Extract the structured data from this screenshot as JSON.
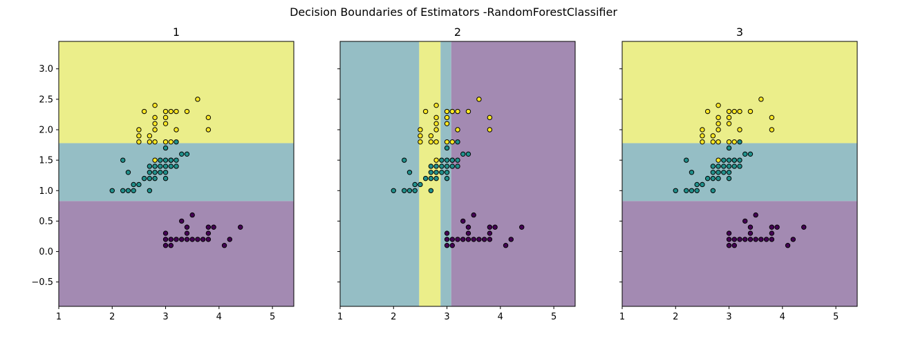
{
  "suptitle": "Decision Boundaries of Estimators -RandomForestClassifier",
  "colors": {
    "class0": "#440154",
    "class1": "#21918c",
    "class2": "#fde725",
    "region0": "#a38ab2",
    "region1": "#95bec5",
    "region2": "#ebee8a"
  },
  "chart_data": [
    {
      "type": "scatter",
      "title": "1",
      "xlim": [
        1.0,
        5.4
      ],
      "ylim": [
        -0.9,
        3.45
      ],
      "xticks": [
        1,
        2,
        3,
        4,
        5
      ],
      "yticks": [
        -0.5,
        0.0,
        0.5,
        1.0,
        1.5,
        2.0,
        2.5,
        3.0
      ],
      "ytick_labels": [
        "−0.5",
        "0.0",
        "0.5",
        "1.0",
        "1.5",
        "2.0",
        "2.5",
        "3.0"
      ],
      "show_yticklabels": true,
      "regions": [
        {
          "class": 0,
          "x": [
            1.0,
            5.4
          ],
          "y": [
            -0.9,
            0.83
          ]
        },
        {
          "class": 1,
          "x": [
            1.0,
            5.4
          ],
          "y": [
            0.83,
            1.78
          ]
        },
        {
          "class": 2,
          "x": [
            1.0,
            5.4
          ],
          "y": [
            1.78,
            3.45
          ]
        }
      ]
    },
    {
      "type": "scatter",
      "title": "2",
      "xlim": [
        1.0,
        5.4
      ],
      "ylim": [
        -0.9,
        3.45
      ],
      "xticks": [
        1,
        2,
        3,
        4,
        5
      ],
      "yticks": [
        -0.5,
        0.0,
        0.5,
        1.0,
        1.5,
        2.0,
        2.5,
        3.0
      ],
      "ytick_labels": [
        "",
        "",
        "",
        "",
        "",
        "",
        "",
        ""
      ],
      "show_yticklabels": false,
      "regions": [
        {
          "class": 1,
          "x": [
            1.0,
            2.48
          ],
          "y": [
            -0.9,
            3.45
          ]
        },
        {
          "class": 2,
          "x": [
            2.48,
            2.88
          ],
          "y": [
            -0.9,
            3.45
          ]
        },
        {
          "class": 1,
          "x": [
            2.88,
            3.08
          ],
          "y": [
            -0.9,
            3.45
          ]
        },
        {
          "class": 0,
          "x": [
            3.08,
            5.4
          ],
          "y": [
            -0.9,
            3.45
          ]
        }
      ]
    },
    {
      "type": "scatter",
      "title": "3",
      "xlim": [
        1.0,
        5.4
      ],
      "ylim": [
        -0.9,
        3.45
      ],
      "xticks": [
        1,
        2,
        3,
        4,
        5
      ],
      "yticks": [
        -0.5,
        0.0,
        0.5,
        1.0,
        1.5,
        2.0,
        2.5,
        3.0
      ],
      "ytick_labels": [
        "",
        "",
        "",
        "",
        "",
        "",
        "",
        ""
      ],
      "show_yticklabels": false,
      "regions": [
        {
          "class": 0,
          "x": [
            1.0,
            5.4
          ],
          "y": [
            -0.9,
            0.83
          ]
        },
        {
          "class": 1,
          "x": [
            1.0,
            5.4
          ],
          "y": [
            0.83,
            1.78
          ]
        },
        {
          "class": 2,
          "x": [
            1.0,
            5.4
          ],
          "y": [
            1.78,
            3.45
          ]
        }
      ]
    }
  ],
  "points": [
    [
      3.0,
      0.1,
      0
    ],
    [
      3.1,
      0.1,
      0
    ],
    [
      4.1,
      0.1,
      0
    ],
    [
      3.0,
      0.2,
      0
    ],
    [
      3.1,
      0.2,
      0
    ],
    [
      3.2,
      0.2,
      0
    ],
    [
      3.3,
      0.2,
      0
    ],
    [
      3.4,
      0.2,
      0
    ],
    [
      3.5,
      0.2,
      0
    ],
    [
      3.6,
      0.2,
      0
    ],
    [
      3.7,
      0.2,
      0
    ],
    [
      3.8,
      0.2,
      0
    ],
    [
      4.2,
      0.2,
      0
    ],
    [
      3.0,
      0.3,
      0
    ],
    [
      3.4,
      0.3,
      0
    ],
    [
      3.8,
      0.3,
      0
    ],
    [
      3.4,
      0.4,
      0
    ],
    [
      3.8,
      0.4,
      0
    ],
    [
      3.9,
      0.4,
      0
    ],
    [
      4.4,
      0.4,
      0
    ],
    [
      3.3,
      0.5,
      0
    ],
    [
      3.5,
      0.6,
      0
    ],
    [
      2.0,
      1.0,
      1
    ],
    [
      2.2,
      1.0,
      1
    ],
    [
      2.3,
      1.0,
      1
    ],
    [
      2.4,
      1.0,
      1
    ],
    [
      2.7,
      1.0,
      1
    ],
    [
      2.5,
      1.1,
      1
    ],
    [
      2.4,
      1.1,
      1
    ],
    [
      2.2,
      1.5,
      1
    ],
    [
      2.3,
      1.3,
      1
    ],
    [
      2.7,
      1.2,
      1
    ],
    [
      2.8,
      1.2,
      1
    ],
    [
      3.0,
      1.2,
      1
    ],
    [
      2.6,
      1.2,
      1
    ],
    [
      2.7,
      1.3,
      1
    ],
    [
      2.8,
      1.3,
      1
    ],
    [
      2.9,
      1.3,
      1
    ],
    [
      3.0,
      1.3,
      1
    ],
    [
      2.8,
      1.4,
      1
    ],
    [
      2.9,
      1.4,
      1
    ],
    [
      3.0,
      1.4,
      1
    ],
    [
      3.1,
      1.4,
      1
    ],
    [
      3.2,
      1.4,
      1
    ],
    [
      2.7,
      1.4,
      1
    ],
    [
      2.9,
      1.5,
      1
    ],
    [
      3.0,
      1.5,
      1
    ],
    [
      3.1,
      1.5,
      1
    ],
    [
      3.2,
      1.5,
      1
    ],
    [
      3.3,
      1.6,
      1
    ],
    [
      3.4,
      1.6,
      1
    ],
    [
      3.0,
      1.7,
      1
    ],
    [
      3.2,
      1.8,
      1
    ],
    [
      3.1,
      1.5,
      1
    ],
    [
      2.8,
      1.5,
      2
    ],
    [
      2.5,
      1.8,
      2
    ],
    [
      2.7,
      1.8,
      2
    ],
    [
      2.8,
      1.8,
      2
    ],
    [
      3.0,
      1.8,
      2
    ],
    [
      3.1,
      1.8,
      2
    ],
    [
      2.5,
      1.9,
      2
    ],
    [
      2.7,
      1.9,
      2
    ],
    [
      2.8,
      2.0,
      2
    ],
    [
      2.5,
      2.0,
      2
    ],
    [
      3.2,
      2.0,
      2
    ],
    [
      3.8,
      2.0,
      2
    ],
    [
      2.8,
      2.1,
      2
    ],
    [
      3.0,
      2.1,
      2
    ],
    [
      2.8,
      2.2,
      2
    ],
    [
      3.0,
      2.2,
      2
    ],
    [
      3.8,
      2.2,
      2
    ],
    [
      2.6,
      2.3,
      2
    ],
    [
      3.0,
      2.3,
      2
    ],
    [
      3.1,
      2.3,
      2
    ],
    [
      3.2,
      2.3,
      2
    ],
    [
      3.4,
      2.3,
      2
    ],
    [
      2.8,
      2.4,
      2
    ],
    [
      3.6,
      2.5,
      2
    ]
  ]
}
